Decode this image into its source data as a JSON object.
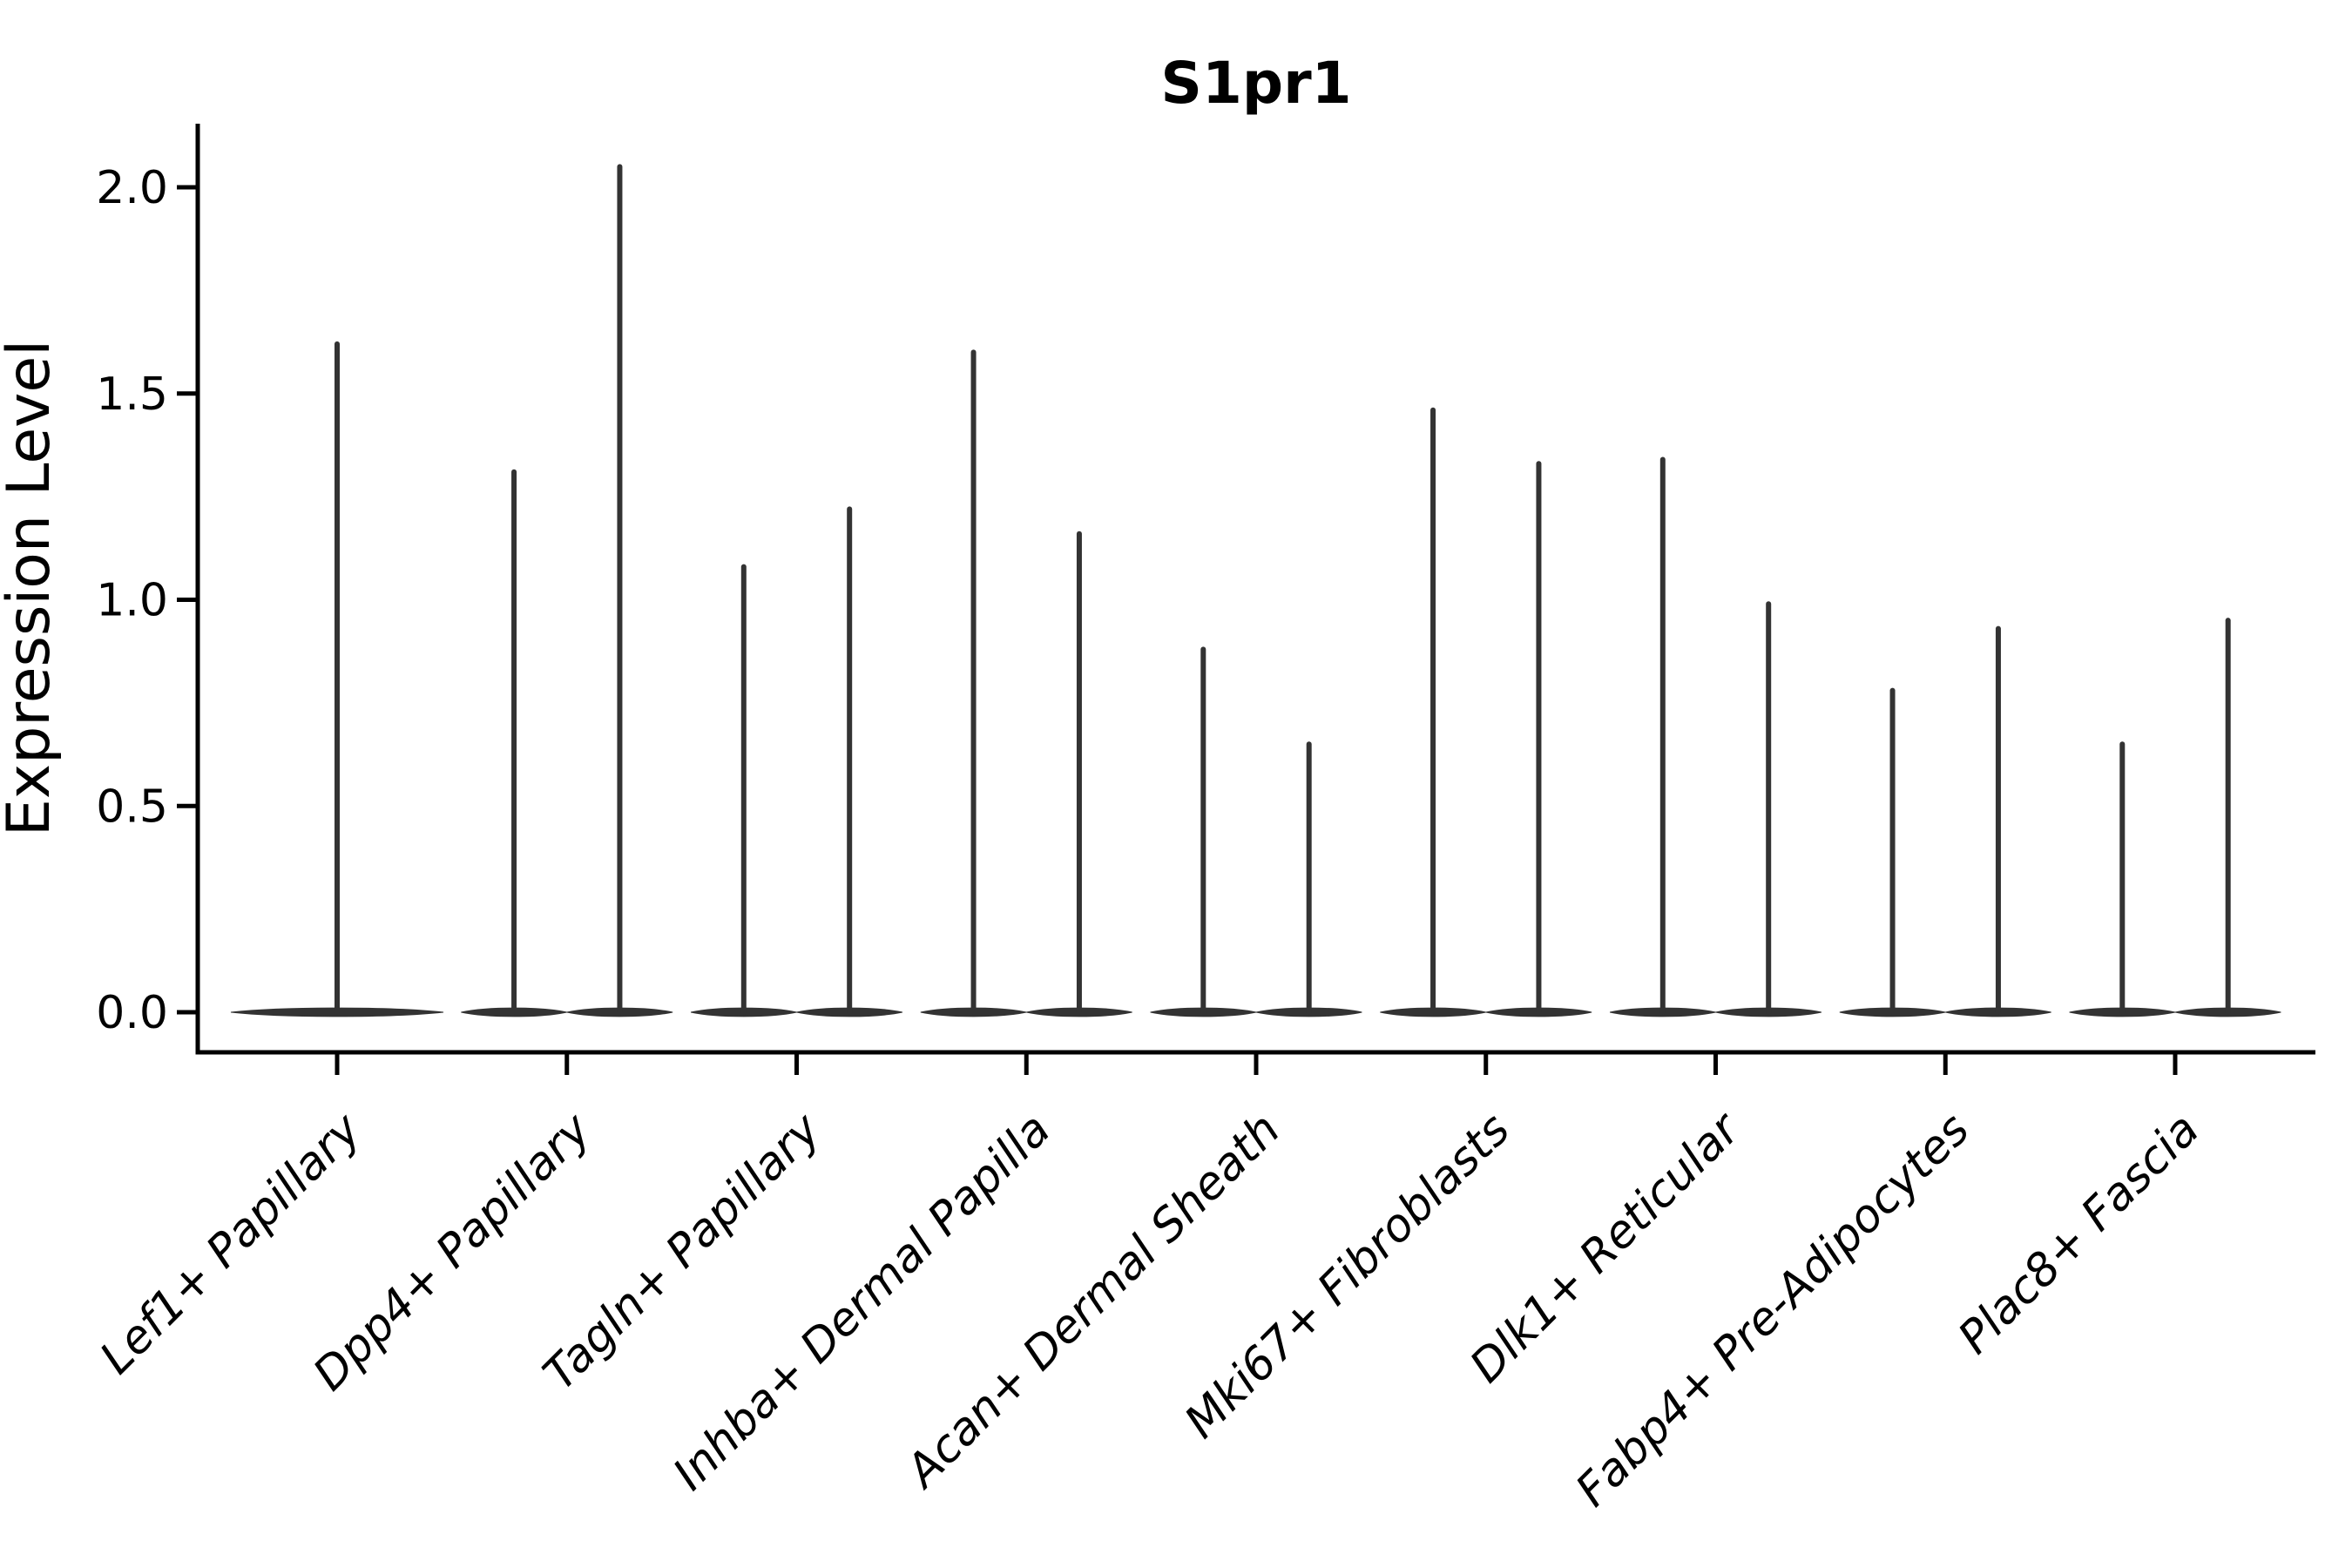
{
  "figure": {
    "background_color": "#ffffff",
    "axis_color": "#000000",
    "violin_color": "#333333"
  },
  "chart_data": {
    "type": "violin",
    "title": "S1pr1",
    "xlabel": "",
    "ylabel": "Expression Level",
    "ylim": [
      -0.1,
      2.15
    ],
    "grid": "off",
    "legend": "none",
    "yticks": [
      0.0,
      0.5,
      1.0,
      1.5,
      2.0
    ],
    "ytick_labels": [
      "0.0",
      "0.5",
      "1.0",
      "1.5",
      "2.0"
    ],
    "categories": [
      "Lef1+ Papillary",
      "Dpp4+ Papillary",
      "Tagln+ Papillary",
      "Inhba+ Dermal Papilla",
      "Acan+ Dermal Sheath",
      "Mki67+ Fibroblasts",
      "Dlk1+ Reticular",
      "Fabp4+ Pre-Adipocytes",
      "Plac8+ Fascia"
    ],
    "description": "Violin plot of S1pr1 expression; most cells at 0 giving flat bases with thin spikes reaching each group's maximum expression value.",
    "baseline_value": 0.0,
    "groups": [
      {
        "category": "Lef1+ Papillary",
        "violins": [
          {
            "position": "center",
            "max": 1.62
          }
        ]
      },
      {
        "category": "Dpp4+ Papillary",
        "violins": [
          {
            "position": "left",
            "max": 1.31
          },
          {
            "position": "right",
            "max": 2.05
          }
        ]
      },
      {
        "category": "Tagln+ Papillary",
        "violins": [
          {
            "position": "left",
            "max": 1.08
          },
          {
            "position": "right",
            "max": 1.22
          }
        ]
      },
      {
        "category": "Inhba+ Dermal Papilla",
        "violins": [
          {
            "position": "left",
            "max": 1.6
          },
          {
            "position": "right",
            "max": 1.16
          }
        ]
      },
      {
        "category": "Acan+ Dermal Sheath",
        "violins": [
          {
            "position": "left",
            "max": 0.88
          },
          {
            "position": "right",
            "max": 0.65
          }
        ]
      },
      {
        "category": "Mki67+ Fibroblasts",
        "violins": [
          {
            "position": "left",
            "max": 1.46
          },
          {
            "position": "right",
            "max": 1.33
          }
        ]
      },
      {
        "category": "Dlk1+ Reticular",
        "violins": [
          {
            "position": "left",
            "max": 1.34
          },
          {
            "position": "right",
            "max": 0.99
          }
        ]
      },
      {
        "category": "Fabp4+ Pre-Adipocytes",
        "violins": [
          {
            "position": "left",
            "max": 0.78
          },
          {
            "position": "right",
            "max": 0.93
          }
        ]
      },
      {
        "category": "Plac8+ Fascia",
        "violins": [
          {
            "position": "left",
            "max": 0.65
          },
          {
            "position": "right",
            "max": 0.95
          }
        ]
      }
    ]
  }
}
